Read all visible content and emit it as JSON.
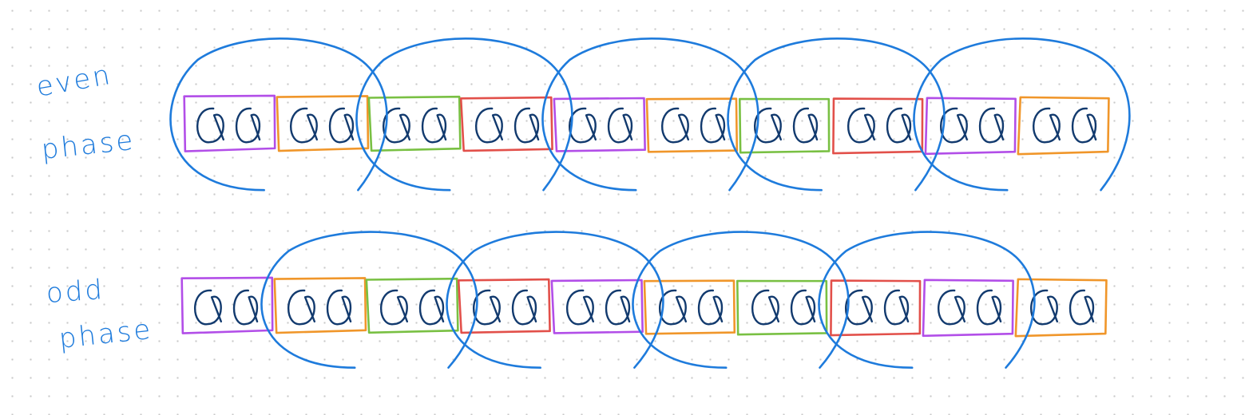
{
  "labels": {
    "even_line1": "even",
    "even_line2": "phase",
    "odd_line1": "odd",
    "odd_line2": "phase"
  },
  "colors": {
    "ink": "#1e7bdc",
    "cell_ink": "#123a6e",
    "background": "#ffffff",
    "grid_dot": "#c9c9c9",
    "box_colors": [
      "#b24ee8",
      "#f0962a",
      "#79c043",
      "#e2504a"
    ]
  },
  "rows": {
    "even": {
      "boxes": [
        "purple",
        "orange",
        "green",
        "red",
        "purple",
        "orange",
        "green",
        "red",
        "purple",
        "orange"
      ],
      "pair_groups": [
        [
          0,
          1
        ],
        [
          2,
          3
        ],
        [
          4,
          5
        ],
        [
          6,
          7
        ],
        [
          8,
          9
        ]
      ]
    },
    "odd": {
      "boxes": [
        "purple",
        "orange",
        "green",
        "red",
        "purple",
        "orange",
        "green",
        "red",
        "purple",
        "orange"
      ],
      "pair_groups": [
        [
          1,
          2
        ],
        [
          3,
          4
        ],
        [
          5,
          6
        ],
        [
          7,
          8
        ]
      ]
    }
  }
}
